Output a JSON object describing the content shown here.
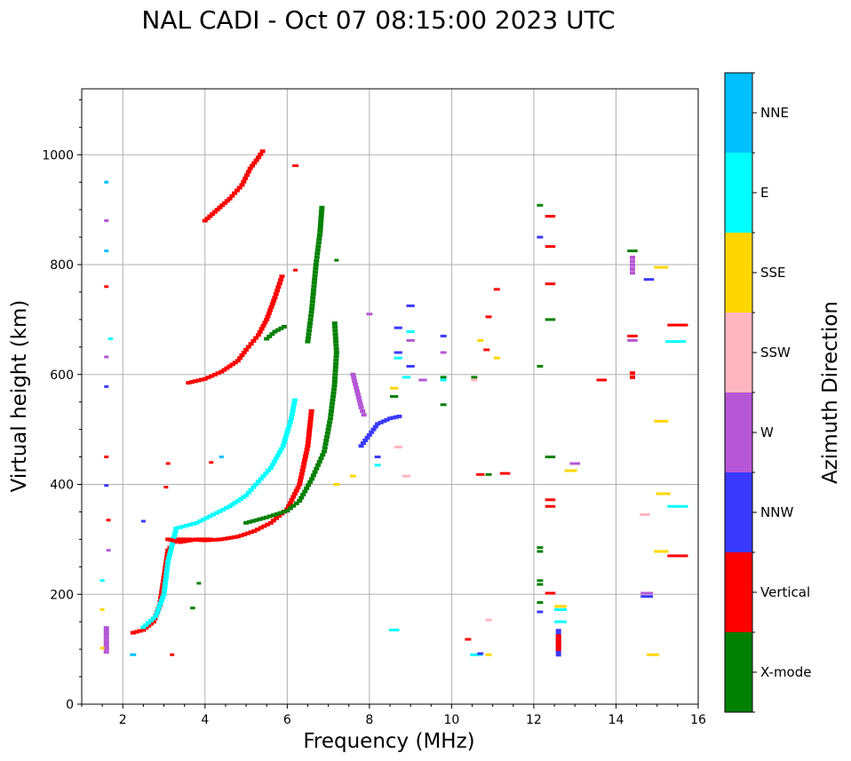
{
  "chart_data": {
    "type": "scatter",
    "title": "NAL CADI - Oct 07 08:15:00 2023 UTC",
    "xlabel": "Frequency (MHz)",
    "ylabel": "Virtual height (km)",
    "xlim": [
      1,
      16
    ],
    "ylim": [
      0,
      1120
    ],
    "xticks": [
      2,
      4,
      6,
      8,
      10,
      12,
      14,
      16
    ],
    "yticks": [
      0,
      200,
      400,
      600,
      800,
      1000
    ],
    "grid": true,
    "colorbar": {
      "label": "Azimuth Direction",
      "categories": [
        {
          "name": "X-mode",
          "color": "#008000"
        },
        {
          "name": "Vertical",
          "color": "#ff0000"
        },
        {
          "name": "NNW",
          "color": "#3a3aff"
        },
        {
          "name": "W",
          "color": "#b557d6"
        },
        {
          "name": "SSW",
          "color": "#ffb6c1"
        },
        {
          "name": "SSE",
          "color": "#ffd700"
        },
        {
          "name": "E",
          "color": "#00ffff"
        },
        {
          "name": "NNE",
          "color": "#00bfff"
        }
      ]
    },
    "traces": [
      {
        "name": "Vertical",
        "mode": "line",
        "points": [
          [
            2.25,
            130
          ],
          [
            2.5,
            135
          ],
          [
            2.75,
            150
          ],
          [
            2.9,
            180
          ],
          [
            3.0,
            230
          ],
          [
            3.1,
            280
          ],
          [
            3.3,
            300
          ],
          [
            3.6,
            300
          ],
          [
            4.0,
            298
          ],
          [
            4.4,
            300
          ],
          [
            4.8,
            305
          ],
          [
            5.2,
            315
          ],
          [
            5.6,
            330
          ],
          [
            6.0,
            355
          ],
          [
            6.3,
            400
          ],
          [
            6.5,
            470
          ],
          [
            6.6,
            540
          ]
        ]
      },
      {
        "name": "E",
        "mode": "line",
        "points": [
          [
            2.5,
            140
          ],
          [
            2.8,
            160
          ],
          [
            3.0,
            200
          ],
          [
            3.1,
            260
          ],
          [
            3.3,
            320
          ],
          [
            3.8,
            330
          ],
          [
            4.2,
            345
          ],
          [
            4.6,
            360
          ],
          [
            5.0,
            380
          ],
          [
            5.3,
            405
          ],
          [
            5.6,
            430
          ],
          [
            5.9,
            470
          ],
          [
            6.1,
            520
          ],
          [
            6.2,
            560
          ]
        ]
      },
      {
        "name": "X-mode",
        "mode": "line",
        "points": [
          [
            5.0,
            330
          ],
          [
            5.5,
            340
          ],
          [
            6.0,
            352
          ],
          [
            6.3,
            370
          ],
          [
            6.6,
            410
          ],
          [
            6.9,
            460
          ],
          [
            7.05,
            520
          ],
          [
            7.15,
            580
          ],
          [
            7.2,
            640
          ],
          [
            7.15,
            700
          ]
        ]
      },
      {
        "name": "X-mode",
        "mode": "line",
        "points": [
          [
            6.5,
            660
          ],
          [
            6.6,
            720
          ],
          [
            6.7,
            800
          ],
          [
            6.8,
            860
          ],
          [
            6.85,
            910
          ]
        ]
      },
      {
        "name": "Vertical",
        "mode": "line",
        "points": [
          [
            3.6,
            585
          ],
          [
            4.0,
            592
          ],
          [
            4.4,
            605
          ],
          [
            4.8,
            625
          ],
          [
            5.0,
            645
          ],
          [
            5.3,
            672
          ],
          [
            5.5,
            700
          ],
          [
            5.7,
            740
          ],
          [
            5.9,
            785
          ]
        ]
      },
      {
        "name": "Vertical",
        "mode": "line",
        "points": [
          [
            4.0,
            880
          ],
          [
            4.3,
            900
          ],
          [
            4.6,
            920
          ],
          [
            4.9,
            945
          ],
          [
            5.1,
            975
          ],
          [
            5.3,
            995
          ],
          [
            5.45,
            1012
          ]
        ]
      },
      {
        "name": "X-mode",
        "mode": "line",
        "points": [
          [
            5.5,
            665
          ],
          [
            5.7,
            678
          ],
          [
            6.0,
            690
          ]
        ]
      },
      {
        "name": "NNW",
        "mode": "line",
        "points": [
          [
            7.8,
            470
          ],
          [
            8.0,
            490
          ],
          [
            8.2,
            510
          ],
          [
            8.5,
            520
          ],
          [
            8.8,
            525
          ]
        ]
      },
      {
        "name": "W",
        "mode": "line",
        "points": [
          [
            7.6,
            600
          ],
          [
            7.7,
            570
          ],
          [
            7.8,
            540
          ],
          [
            7.9,
            520
          ]
        ]
      },
      {
        "name": "Vertical",
        "mode": "line",
        "points": [
          [
            3.1,
            300
          ],
          [
            3.4,
            295
          ],
          [
            3.8,
            300
          ],
          [
            4.2,
            300
          ]
        ]
      },
      {
        "name": "NNW",
        "mode": "line",
        "points": [
          [
            12.6,
            90
          ],
          [
            12.6,
            140
          ]
        ]
      },
      {
        "name": "Vertical",
        "mode": "line",
        "points": [
          [
            12.6,
            100
          ],
          [
            12.6,
            130
          ]
        ]
      },
      {
        "name": "W",
        "mode": "line",
        "points": [
          [
            14.4,
            785
          ],
          [
            14.4,
            820
          ]
        ]
      },
      {
        "name": "Vertical",
        "mode": "line",
        "points": [
          [
            14.4,
            595
          ],
          [
            14.4,
            610
          ]
        ]
      },
      {
        "name": "W",
        "mode": "line",
        "points": [
          [
            1.6,
            95
          ],
          [
            1.6,
            145
          ]
        ]
      }
    ],
    "segments": [
      {
        "name": "E",
        "f": 8.6,
        "h": 135,
        "w": 0.25
      },
      {
        "name": "Vertical",
        "f": 10.4,
        "h": 118,
        "w": 0.15
      },
      {
        "name": "E",
        "f": 10.6,
        "h": 90,
        "w": 0.3
      },
      {
        "name": "SSE",
        "f": 10.9,
        "h": 90,
        "w": 0.15
      },
      {
        "name": "NNW",
        "f": 10.7,
        "h": 92,
        "w": 0.15
      },
      {
        "name": "SSW",
        "f": 10.9,
        "h": 153,
        "w": 0.15
      },
      {
        "name": "Vertical",
        "f": 10.7,
        "h": 418,
        "w": 0.2
      },
      {
        "name": "X-mode",
        "f": 10.9,
        "h": 418,
        "w": 0.15
      },
      {
        "name": "Vertical",
        "f": 11.3,
        "h": 420,
        "w": 0.25
      },
      {
        "name": "X-mode",
        "f": 10.55,
        "h": 595,
        "w": 0.15
      },
      {
        "name": "SSW",
        "f": 10.55,
        "h": 590,
        "w": 0.15
      },
      {
        "name": "Vertical",
        "f": 10.85,
        "h": 645,
        "w": 0.15
      },
      {
        "name": "SSE",
        "f": 10.7,
        "h": 662,
        "w": 0.15
      },
      {
        "name": "Vertical",
        "f": 10.9,
        "h": 705,
        "w": 0.15
      },
      {
        "name": "SSE",
        "f": 11.1,
        "h": 630,
        "w": 0.15
      },
      {
        "name": "Vertical",
        "f": 11.1,
        "h": 755,
        "w": 0.15
      },
      {
        "name": "X-mode",
        "f": 12.15,
        "h": 908,
        "w": 0.15
      },
      {
        "name": "Vertical",
        "f": 12.4,
        "h": 888,
        "w": 0.25
      },
      {
        "name": "NNW",
        "f": 12.15,
        "h": 850,
        "w": 0.15
      },
      {
        "name": "Vertical",
        "f": 12.4,
        "h": 833,
        "w": 0.25
      },
      {
        "name": "Vertical",
        "f": 12.4,
        "h": 765,
        "w": 0.25
      },
      {
        "name": "X-mode",
        "f": 12.4,
        "h": 700,
        "w": 0.25
      },
      {
        "name": "X-mode",
        "f": 12.15,
        "h": 615,
        "w": 0.15
      },
      {
        "name": "X-mode",
        "f": 12.4,
        "h": 450,
        "w": 0.25
      },
      {
        "name": "Vertical",
        "f": 12.4,
        "h": 372,
        "w": 0.25
      },
      {
        "name": "Vertical",
        "f": 12.4,
        "h": 360,
        "w": 0.25
      },
      {
        "name": "X-mode",
        "f": 12.15,
        "h": 285,
        "w": 0.15
      },
      {
        "name": "X-mode",
        "f": 12.15,
        "h": 278,
        "w": 0.15
      },
      {
        "name": "X-mode",
        "f": 12.15,
        "h": 225,
        "w": 0.15
      },
      {
        "name": "X-mode",
        "f": 12.15,
        "h": 218,
        "w": 0.15
      },
      {
        "name": "Vertical",
        "f": 12.4,
        "h": 202,
        "w": 0.25
      },
      {
        "name": "X-mode",
        "f": 12.15,
        "h": 185,
        "w": 0.15
      },
      {
        "name": "NNW",
        "f": 12.15,
        "h": 168,
        "w": 0.15
      },
      {
        "name": "SSE",
        "f": 12.65,
        "h": 178,
        "w": 0.3
      },
      {
        "name": "E",
        "f": 12.65,
        "h": 172,
        "w": 0.3
      },
      {
        "name": "E",
        "f": 12.65,
        "h": 150,
        "w": 0.3
      },
      {
        "name": "W",
        "f": 13.0,
        "h": 438,
        "w": 0.25
      },
      {
        "name": "SSE",
        "f": 12.9,
        "h": 425,
        "w": 0.3
      },
      {
        "name": "Vertical",
        "f": 13.65,
        "h": 590,
        "w": 0.25
      },
      {
        "name": "X-mode",
        "f": 14.4,
        "h": 825,
        "w": 0.25
      },
      {
        "name": "NNW",
        "f": 14.8,
        "h": 773,
        "w": 0.25
      },
      {
        "name": "SSE",
        "f": 15.1,
        "h": 795,
        "w": 0.35
      },
      {
        "name": "Vertical",
        "f": 15.5,
        "h": 690,
        "w": 0.5
      },
      {
        "name": "E",
        "f": 15.45,
        "h": 660,
        "w": 0.5
      },
      {
        "name": "Vertical",
        "f": 14.4,
        "h": 670,
        "w": 0.25
      },
      {
        "name": "W",
        "f": 14.4,
        "h": 662,
        "w": 0.25
      },
      {
        "name": "SSE",
        "f": 15.1,
        "h": 515,
        "w": 0.35
      },
      {
        "name": "SSE",
        "f": 15.15,
        "h": 383,
        "w": 0.35
      },
      {
        "name": "E",
        "f": 15.5,
        "h": 360,
        "w": 0.5
      },
      {
        "name": "SSW",
        "f": 14.7,
        "h": 345,
        "w": 0.25
      },
      {
        "name": "SSE",
        "f": 15.1,
        "h": 278,
        "w": 0.35
      },
      {
        "name": "Vertical",
        "f": 15.5,
        "h": 270,
        "w": 0.5
      },
      {
        "name": "W",
        "f": 14.75,
        "h": 202,
        "w": 0.3
      },
      {
        "name": "NNW",
        "f": 14.75,
        "h": 196,
        "w": 0.3
      },
      {
        "name": "SSE",
        "f": 14.9,
        "h": 90,
        "w": 0.3
      },
      {
        "name": "X-mode",
        "f": 9.8,
        "h": 595,
        "w": 0.15
      },
      {
        "name": "E",
        "f": 9.8,
        "h": 590,
        "w": 0.15
      },
      {
        "name": "W",
        "f": 9.8,
        "h": 640,
        "w": 0.15
      },
      {
        "name": "NNW",
        "f": 9.8,
        "h": 670,
        "w": 0.15
      },
      {
        "name": "X-mode",
        "f": 9.8,
        "h": 545,
        "w": 0.15
      },
      {
        "name": "NNW",
        "f": 9.0,
        "h": 725,
        "w": 0.2
      },
      {
        "name": "E",
        "f": 9.0,
        "h": 678,
        "w": 0.2
      },
      {
        "name": "W",
        "f": 9.0,
        "h": 662,
        "w": 0.2
      },
      {
        "name": "NNW",
        "f": 9.0,
        "h": 615,
        "w": 0.2
      },
      {
        "name": "NNW",
        "f": 8.7,
        "h": 685,
        "w": 0.2
      },
      {
        "name": "NNW",
        "f": 8.7,
        "h": 640,
        "w": 0.2
      },
      {
        "name": "E",
        "f": 8.7,
        "h": 630,
        "w": 0.2
      },
      {
        "name": "SSE",
        "f": 8.6,
        "h": 575,
        "w": 0.2
      },
      {
        "name": "X-mode",
        "f": 8.6,
        "h": 560,
        "w": 0.2
      },
      {
        "name": "E",
        "f": 8.9,
        "h": 595,
        "w": 0.2
      },
      {
        "name": "W",
        "f": 9.3,
        "h": 590,
        "w": 0.2
      },
      {
        "name": "SSW",
        "f": 8.9,
        "h": 415,
        "w": 0.2
      },
      {
        "name": "SSW",
        "f": 8.7,
        "h": 468,
        "w": 0.2
      },
      {
        "name": "W",
        "f": 8.0,
        "h": 710,
        "w": 0.15
      },
      {
        "name": "E",
        "f": 8.2,
        "h": 435,
        "w": 0.15
      },
      {
        "name": "NNW",
        "f": 8.2,
        "h": 450,
        "w": 0.15
      },
      {
        "name": "Vertical",
        "f": 1.6,
        "h": 760,
        "w": 0.08
      },
      {
        "name": "NNE",
        "f": 1.6,
        "h": 825,
        "w": 0.08
      },
      {
        "name": "W",
        "f": 1.6,
        "h": 880,
        "w": 0.08
      },
      {
        "name": "NNE",
        "f": 1.6,
        "h": 950,
        "w": 0.08
      },
      {
        "name": "E",
        "f": 1.7,
        "h": 665,
        "w": 0.08
      },
      {
        "name": "W",
        "f": 1.6,
        "h": 632,
        "w": 0.08
      },
      {
        "name": "NNW",
        "f": 1.6,
        "h": 578,
        "w": 0.08
      },
      {
        "name": "Vertical",
        "f": 1.6,
        "h": 450,
        "w": 0.08
      },
      {
        "name": "NNW",
        "f": 1.6,
        "h": 398,
        "w": 0.08
      },
      {
        "name": "Vertical",
        "f": 1.65,
        "h": 335,
        "w": 0.1
      },
      {
        "name": "W",
        "f": 1.65,
        "h": 280,
        "w": 0.1
      },
      {
        "name": "E",
        "f": 1.5,
        "h": 225,
        "w": 0.1
      },
      {
        "name": "SSE",
        "f": 1.5,
        "h": 172,
        "w": 0.1
      },
      {
        "name": "SSE",
        "f": 1.5,
        "h": 102,
        "w": 0.1
      },
      {
        "name": "X-mode",
        "f": 3.7,
        "h": 175,
        "w": 0.12
      },
      {
        "name": "X-mode",
        "f": 3.85,
        "h": 220,
        "w": 0.1
      },
      {
        "name": "Vertical",
        "f": 3.1,
        "h": 438,
        "w": 0.1
      },
      {
        "name": "Vertical",
        "f": 3.05,
        "h": 395,
        "w": 0.1
      },
      {
        "name": "NNW",
        "f": 2.5,
        "h": 333,
        "w": 0.1
      },
      {
        "name": "Vertical",
        "f": 3.2,
        "h": 90,
        "w": 0.08
      },
      {
        "name": "NNE",
        "f": 2.25,
        "h": 90,
        "w": 0.15
      },
      {
        "name": "Vertical",
        "f": 4.15,
        "h": 440,
        "w": 0.1
      },
      {
        "name": "NNE",
        "f": 4.4,
        "h": 450,
        "w": 0.1
      },
      {
        "name": "Vertical",
        "f": 6.2,
        "h": 980,
        "w": 0.15
      },
      {
        "name": "Vertical",
        "f": 6.2,
        "h": 790,
        "w": 0.1
      },
      {
        "name": "X-mode",
        "f": 7.2,
        "h": 808,
        "w": 0.08
      },
      {
        "name": "SSE",
        "f": 7.2,
        "h": 400,
        "w": 0.15
      },
      {
        "name": "SSE",
        "f": 7.6,
        "h": 415,
        "w": 0.15
      }
    ]
  }
}
